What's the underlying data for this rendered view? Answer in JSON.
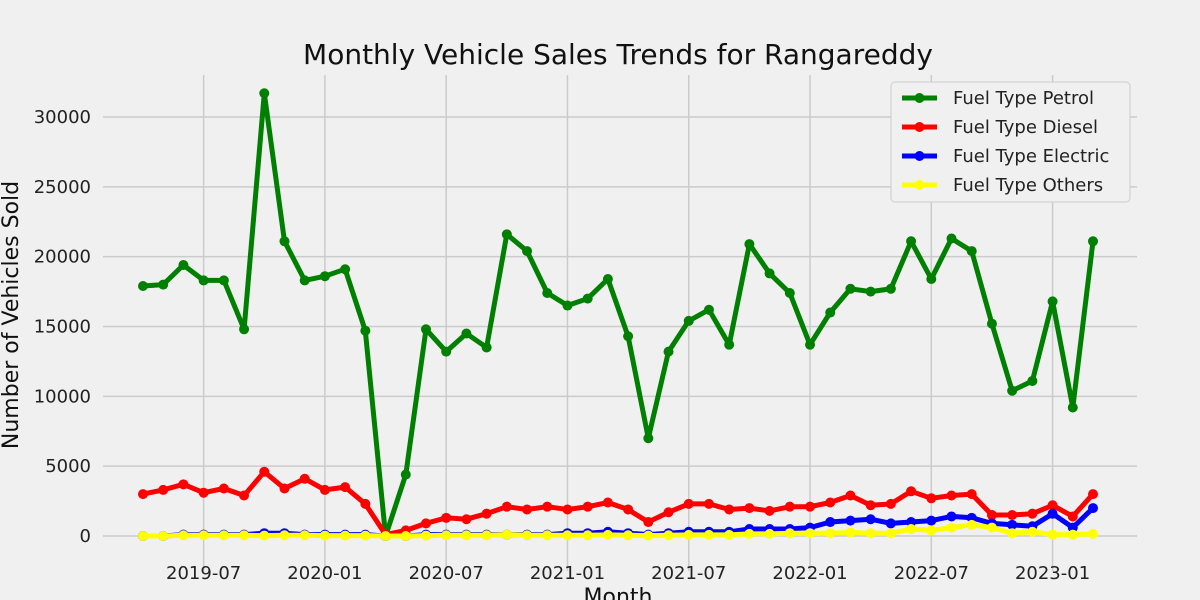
{
  "chart_data": {
    "type": "line",
    "title": "Monthly Vehicle Sales Trends for Rangareddy",
    "xlabel": "Month",
    "ylabel": "Number of Vehicles Sold",
    "x": [
      "2019-04",
      "2019-05",
      "2019-06",
      "2019-07",
      "2019-08",
      "2019-09",
      "2019-10",
      "2019-11",
      "2019-12",
      "2020-01",
      "2020-02",
      "2020-03",
      "2020-04",
      "2020-05",
      "2020-06",
      "2020-07",
      "2020-08",
      "2020-09",
      "2020-10",
      "2020-11",
      "2020-12",
      "2021-01",
      "2021-02",
      "2021-03",
      "2021-04",
      "2021-05",
      "2021-06",
      "2021-07",
      "2021-08",
      "2021-09",
      "2021-10",
      "2021-11",
      "2021-12",
      "2022-01",
      "2022-02",
      "2022-03",
      "2022-04",
      "2022-05",
      "2022-06",
      "2022-07",
      "2022-08",
      "2022-09",
      "2022-10",
      "2022-11",
      "2022-12",
      "2023-01",
      "2023-02",
      "2023-03"
    ],
    "x_ticks": [
      "2019-07",
      "2020-01",
      "2020-07",
      "2021-01",
      "2021-07",
      "2022-01",
      "2022-07",
      "2023-01"
    ],
    "y_ticks": [
      0,
      5000,
      10000,
      15000,
      20000,
      25000,
      30000
    ],
    "ylim": [
      -2500,
      33000
    ],
    "grid": true,
    "legend_position": "top-right",
    "series": [
      {
        "name": "Fuel Type Petrol",
        "color": "#008000",
        "values": [
          17900,
          18000,
          19400,
          18300,
          18300,
          14800,
          31700,
          21100,
          18300,
          18600,
          19100,
          14700,
          0,
          4400,
          14800,
          13200,
          14500,
          13500,
          21600,
          20400,
          17400,
          16500,
          17000,
          18400,
          14300,
          7000,
          13200,
          15400,
          16200,
          13700,
          20900,
          18800,
          17400,
          13700,
          16000,
          17700,
          17500,
          17700,
          21100,
          18400,
          21300,
          20400,
          15200,
          10400,
          11100,
          16800,
          9200,
          21100
        ]
      },
      {
        "name": "Fuel Type Diesel",
        "color": "#ff0000",
        "values": [
          3000,
          3300,
          3700,
          3100,
          3400,
          2900,
          4600,
          3400,
          4100,
          3300,
          3500,
          2300,
          100,
          400,
          900,
          1300,
          1200,
          1600,
          2100,
          1900,
          2100,
          1900,
          2100,
          2400,
          1900,
          1000,
          1700,
          2300,
          2300,
          1900,
          2000,
          1800,
          2100,
          2100,
          2400,
          2900,
          2200,
          2300,
          3200,
          2700,
          2900,
          3000,
          1500,
          1500,
          1600,
          2200,
          1400,
          3000
        ]
      },
      {
        "name": "Fuel Type Electric",
        "color": "#0000ff",
        "values": [
          0,
          0,
          100,
          100,
          100,
          100,
          200,
          200,
          100,
          100,
          100,
          100,
          0,
          0,
          100,
          100,
          100,
          100,
          100,
          100,
          100,
          200,
          200,
          300,
          200,
          100,
          200,
          300,
          300,
          300,
          500,
          500,
          500,
          600,
          1000,
          1100,
          1200,
          900,
          1000,
          1100,
          1400,
          1300,
          900,
          800,
          700,
          1600,
          600,
          2000
        ]
      },
      {
        "name": "Fuel Type Others",
        "color": "#ffff00",
        "values": [
          0,
          0,
          50,
          50,
          50,
          50,
          30,
          50,
          50,
          30,
          30,
          30,
          0,
          0,
          30,
          50,
          50,
          50,
          100,
          50,
          50,
          50,
          50,
          80,
          50,
          30,
          50,
          80,
          80,
          80,
          150,
          150,
          200,
          200,
          200,
          250,
          200,
          200,
          500,
          400,
          600,
          800,
          600,
          200,
          300,
          100,
          100,
          150
        ]
      }
    ]
  }
}
